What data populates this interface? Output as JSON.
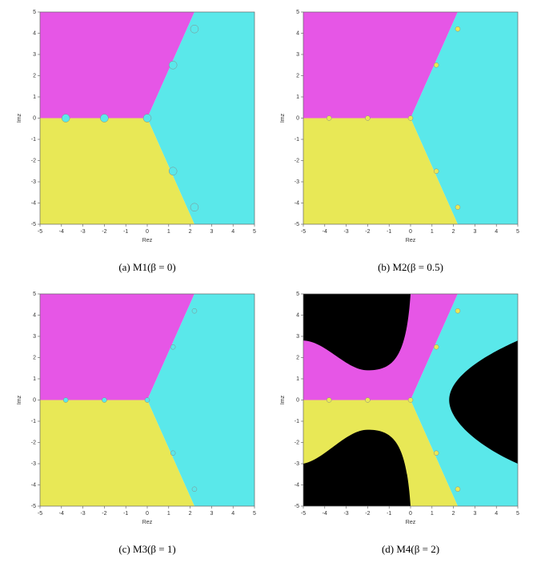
{
  "chart_data": [
    {
      "type": "basins",
      "caption": "(a)  M1(β = 0)",
      "x_label": "Rez",
      "y_label": "Imz",
      "xlim": [
        -5,
        5
      ],
      "ylim": [
        -5,
        5
      ],
      "xticks": [
        -5,
        -4,
        -3,
        -2,
        -1,
        0,
        1,
        2,
        3,
        4,
        5
      ],
      "yticks": [
        -5,
        -4,
        -3,
        -2,
        -1,
        0,
        1,
        2,
        3,
        4,
        5
      ]
    },
    {
      "type": "basins",
      "caption": "(b)  M2(β = 0.5)",
      "x_label": "Rez",
      "y_label": "Imz",
      "xlim": [
        -5,
        5
      ],
      "ylim": [
        -5,
        5
      ],
      "xticks": [
        -5,
        -4,
        -3,
        -2,
        -1,
        0,
        1,
        2,
        3,
        4,
        5
      ],
      "yticks": [
        -5,
        -4,
        -3,
        -2,
        -1,
        0,
        1,
        2,
        3,
        4,
        5
      ]
    },
    {
      "type": "basins",
      "caption": "(c)  M3(β = 1)",
      "x_label": "Rez",
      "y_label": "Imz",
      "xlim": [
        -5,
        5
      ],
      "ylim": [
        -5,
        5
      ],
      "xticks": [
        -5,
        -4,
        -3,
        -2,
        -1,
        0,
        1,
        2,
        3,
        4,
        5
      ],
      "yticks": [
        -5,
        -4,
        -3,
        -2,
        -1,
        0,
        1,
        2,
        3,
        4,
        5
      ]
    },
    {
      "type": "basins",
      "caption": "(d)  M4(β = 2)",
      "x_label": "Rez",
      "y_label": "Imz",
      "xlim": [
        -5,
        5
      ],
      "ylim": [
        -5,
        5
      ],
      "xticks": [
        -5,
        -4,
        -3,
        -2,
        -1,
        0,
        1,
        2,
        3,
        4,
        5
      ],
      "yticks": [
        -5,
        -4,
        -3,
        -2,
        -1,
        0,
        1,
        2,
        3,
        4,
        5
      ]
    }
  ]
}
